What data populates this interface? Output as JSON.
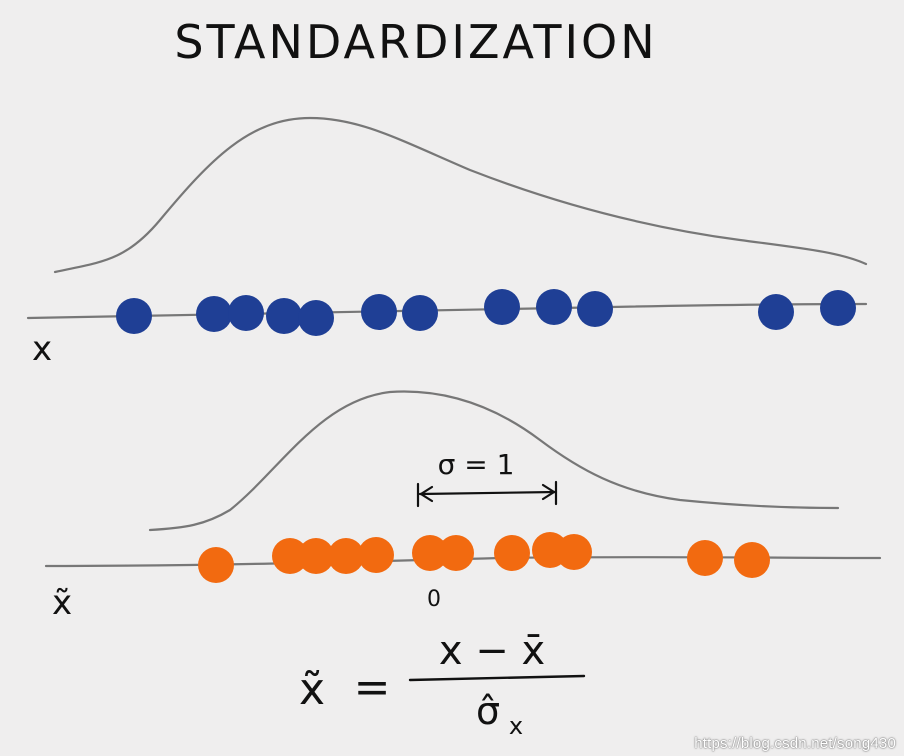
{
  "title": "STANDARDIZATION",
  "top_axis_label": "x",
  "bottom_axis_label": "x̃",
  "sigma_label": "σ = 1",
  "zero_label": "0",
  "formula": {
    "lhs": "x̃",
    "equals": "=",
    "numerator": "x − x̄",
    "denominator": "σ̂",
    "denominator_sub": "x"
  },
  "colors": {
    "raw_points": "#1f3f95",
    "standardized_points": "#f26a10",
    "line": "#777777"
  },
  "watermark": "https://blog.csdn.net/song430"
}
